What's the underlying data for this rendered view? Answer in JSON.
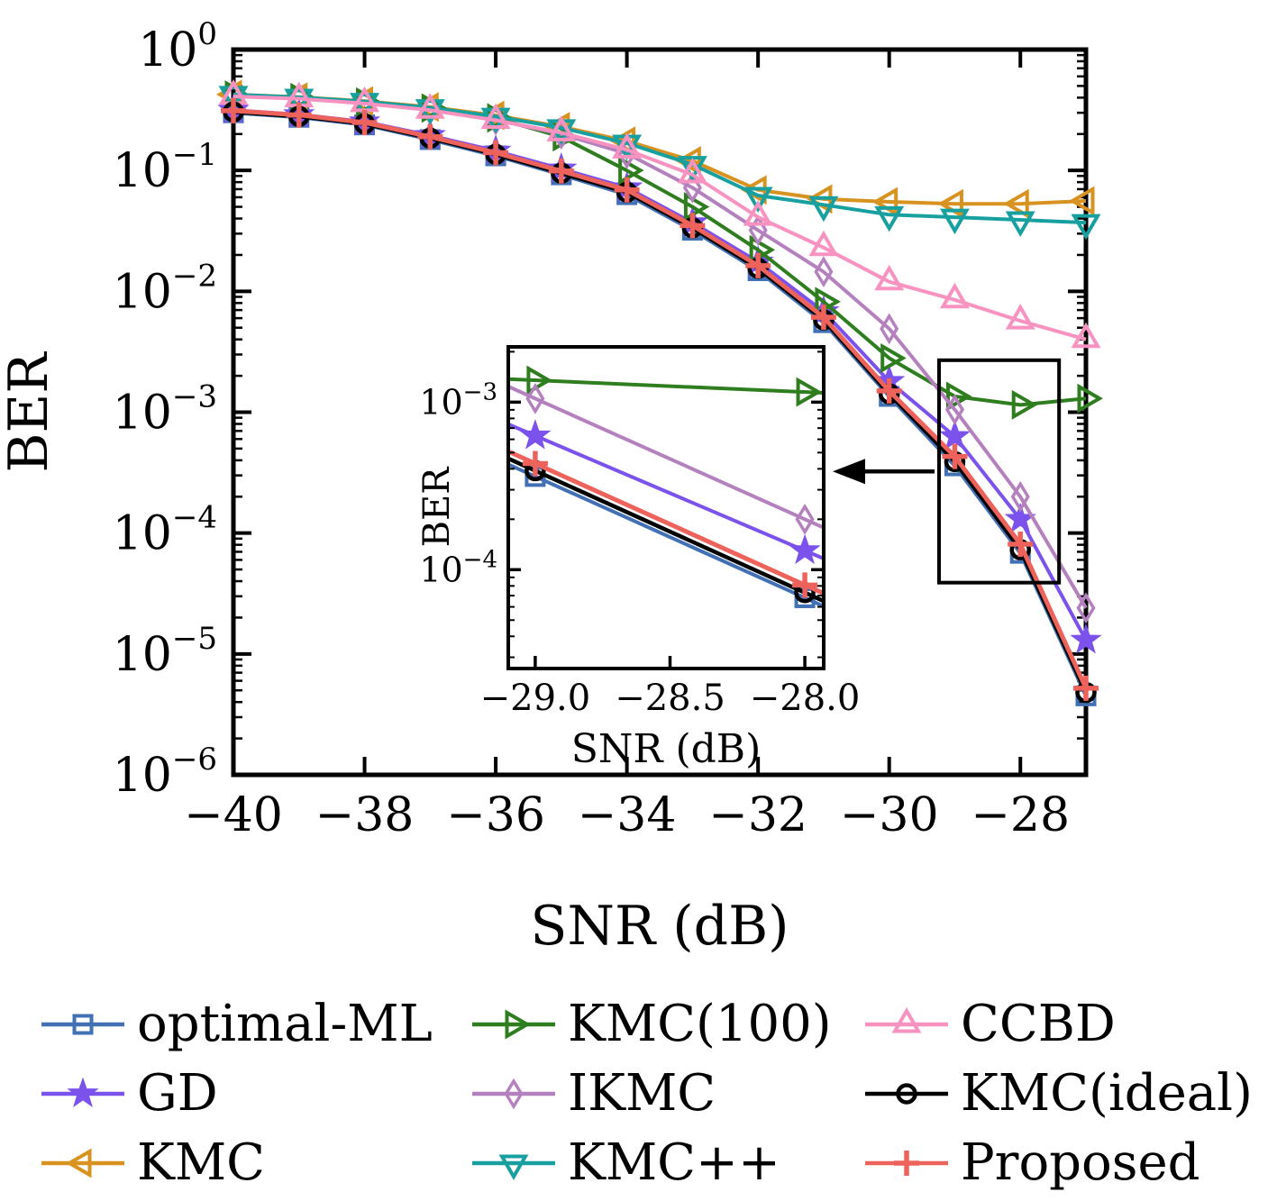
{
  "figure": {
    "background": "#ffffff",
    "frame_color": "#000000"
  },
  "chart_data": {
    "type": "line",
    "title": "",
    "xlabel": "SNR (dB)",
    "ylabel": "BER",
    "yscale": "log",
    "grid": false,
    "xlim": [
      -40,
      -27
    ],
    "ylim_log": [
      -6,
      0
    ],
    "xticks": [
      -40,
      -38,
      -36,
      -34,
      -32,
      -30,
      -28
    ],
    "xtick_labels": [
      "−40",
      "−38",
      "−36",
      "−34",
      "−32",
      "−30",
      "−28"
    ],
    "ytick_exponents": [
      0,
      -1,
      -2,
      -3,
      -4,
      -5,
      -6
    ],
    "x": [
      -40,
      -39,
      -38,
      -37,
      -36,
      -35,
      -34,
      -33,
      -32,
      -31,
      -30,
      -29,
      -28,
      -27
    ],
    "series": [
      {
        "name": "optimal-ML",
        "color": "#4170B4",
        "marker": "square",
        "line_width": 4,
        "values": [
          0.3,
          0.275,
          0.238,
          0.18,
          0.132,
          0.092,
          0.063,
          0.032,
          0.0148,
          0.0055,
          0.00135,
          0.00036,
          6.8e-05,
          4.5e-06
        ]
      },
      {
        "name": "GD",
        "color": "#7B52EC",
        "marker": "star",
        "line_width": 4,
        "values": [
          0.315,
          0.29,
          0.253,
          0.195,
          0.145,
          0.103,
          0.072,
          0.037,
          0.0175,
          0.0068,
          0.0018,
          0.00063,
          0.00013,
          1.3e-05
        ]
      },
      {
        "name": "KMC",
        "color": "#D8921F",
        "marker": "tri-left",
        "line_width": 4,
        "values": [
          0.425,
          0.405,
          0.375,
          0.335,
          0.285,
          0.23,
          0.175,
          0.12,
          0.069,
          0.058,
          0.055,
          0.053,
          0.053,
          0.056
        ]
      },
      {
        "name": "KMC(100)",
        "color": "#2E7D1E",
        "marker": "tri-right",
        "line_width": 4,
        "values": [
          0.42,
          0.4,
          0.368,
          0.328,
          0.272,
          0.19,
          0.1,
          0.05,
          0.022,
          0.0082,
          0.0028,
          0.00135,
          0.00115,
          0.0013
        ]
      },
      {
        "name": "IKMC",
        "color": "#B481BE",
        "marker": "diamond-thin",
        "line_width": 4,
        "values": [
          0.415,
          0.396,
          0.362,
          0.318,
          0.262,
          0.2,
          0.138,
          0.072,
          0.032,
          0.0145,
          0.0049,
          0.00105,
          0.0002,
          2.4e-05
        ]
      },
      {
        "name": "KMC++",
        "color": "#18A0A0",
        "marker": "tri-down",
        "line_width": 4,
        "values": [
          0.425,
          0.403,
          0.372,
          0.33,
          0.28,
          0.225,
          0.168,
          0.112,
          0.062,
          0.052,
          0.043,
          0.041,
          0.039,
          0.037
        ]
      },
      {
        "name": "CCBD",
        "color": "#F892C0",
        "marker": "tri-up",
        "line_width": 4,
        "values": [
          0.41,
          0.392,
          0.358,
          0.315,
          0.26,
          0.205,
          0.148,
          0.092,
          0.041,
          0.023,
          0.012,
          0.0085,
          0.0057,
          0.004
        ]
      },
      {
        "name": "KMC(ideal)",
        "color": "#000000",
        "marker": "circle",
        "line_width": 4.5,
        "values": [
          0.305,
          0.28,
          0.243,
          0.185,
          0.136,
          0.095,
          0.066,
          0.0335,
          0.0155,
          0.0058,
          0.00142,
          0.00039,
          7.3e-05,
          4.8e-06
        ]
      },
      {
        "name": "Proposed",
        "color": "#EE625C",
        "marker": "plus",
        "line_width": 5,
        "values": [
          0.312,
          0.287,
          0.249,
          0.19,
          0.14,
          0.099,
          0.069,
          0.035,
          0.0163,
          0.0061,
          0.0015,
          0.00043,
          8.1e-05,
          5.2e-06
        ]
      }
    ],
    "inset": {
      "xlabel": "SNR (dB)",
      "ylabel": "BER",
      "x": [
        -29,
        -28
      ],
      "xlim": [
        -29.1,
        -27.93
      ],
      "ylim_log": [
        -4.59,
        -2.67
      ],
      "xticks": [
        -29.0,
        -28.5,
        -28.0
      ],
      "xtick_labels": [
        "−29.0",
        "−28.5",
        "−28.0"
      ],
      "ytick_exponents": [
        -3,
        -4
      ],
      "series_names": [
        "optimal-ML",
        "GD",
        "KMC(100)",
        "IKMC",
        "KMC(ideal)",
        "Proposed"
      ]
    },
    "zoom_box": {
      "x_range": [
        -29.24,
        -27.41
      ],
      "log_y_range": [
        -4.41,
        -2.57
      ]
    },
    "arrow": {
      "direction": "left",
      "color": "#000000"
    }
  },
  "legend": {
    "items": [
      {
        "label": "optimal-ML",
        "marker": "square",
        "color": "#4170B4"
      },
      {
        "label": "GD",
        "marker": "star",
        "color": "#7B52EC"
      },
      {
        "label": "KMC",
        "marker": "tri-left",
        "color": "#D8921F"
      },
      {
        "label": "KMC(100)",
        "marker": "tri-right",
        "color": "#2E7D1E"
      },
      {
        "label": "IKMC",
        "marker": "diamond-thin",
        "color": "#B481BE"
      },
      {
        "label": "KMC++",
        "marker": "tri-down",
        "color": "#18A0A0"
      },
      {
        "label": "CCBD",
        "marker": "tri-up",
        "color": "#F892C0"
      },
      {
        "label": "KMC(ideal)",
        "marker": "circle",
        "color": "#000000"
      },
      {
        "label": "Proposed",
        "marker": "plus",
        "color": "#EE625C"
      }
    ]
  }
}
